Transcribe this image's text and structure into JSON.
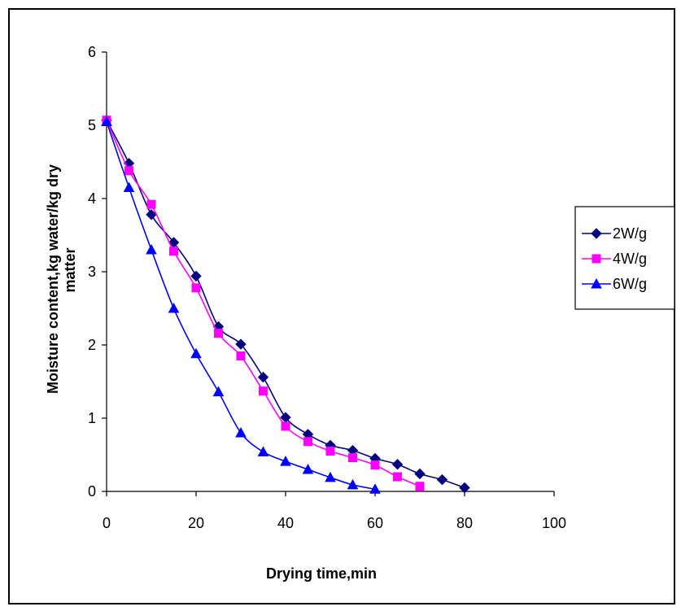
{
  "chart_data": {
    "type": "line",
    "xlabel": "Drying time,min",
    "ylabel_lines": [
      "Moisture content,kg water/kg dry",
      "matter"
    ],
    "xlim": [
      0,
      100
    ],
    "ylim": [
      0,
      6
    ],
    "xticks": [
      0,
      20,
      40,
      60,
      80,
      100
    ],
    "yticks": [
      0,
      1,
      2,
      3,
      4,
      5,
      6
    ],
    "grid": false,
    "legend_position": "right",
    "series": [
      {
        "name": "2W/g",
        "color": "#000080",
        "marker": "diamond",
        "x": [
          0,
          5,
          10,
          15,
          20,
          25,
          30,
          35,
          40,
          45,
          50,
          55,
          60,
          65,
          70,
          75,
          80
        ],
        "y": [
          5.07,
          4.48,
          3.78,
          3.4,
          2.94,
          2.25,
          2.01,
          1.56,
          1.01,
          0.78,
          0.63,
          0.56,
          0.45,
          0.37,
          0.24,
          0.16,
          0.05
        ]
      },
      {
        "name": "4W/g",
        "color": "#FF00FF",
        "marker": "square",
        "x": [
          0,
          5,
          10,
          15,
          20,
          25,
          30,
          35,
          40,
          45,
          50,
          55,
          60,
          65,
          70
        ],
        "y": [
          5.07,
          4.38,
          3.92,
          3.28,
          2.78,
          2.16,
          1.85,
          1.37,
          0.89,
          0.68,
          0.55,
          0.46,
          0.36,
          0.2,
          0.07
        ]
      },
      {
        "name": "6W/g",
        "color": "#0000FF",
        "marker": "triangle",
        "x": [
          0,
          5,
          10,
          15,
          20,
          25,
          30,
          35,
          40,
          45,
          50,
          55,
          60
        ],
        "y": [
          5.05,
          4.15,
          3.3,
          2.5,
          1.88,
          1.36,
          0.8,
          0.54,
          0.41,
          0.3,
          0.19,
          0.09,
          0.03
        ]
      }
    ]
  }
}
